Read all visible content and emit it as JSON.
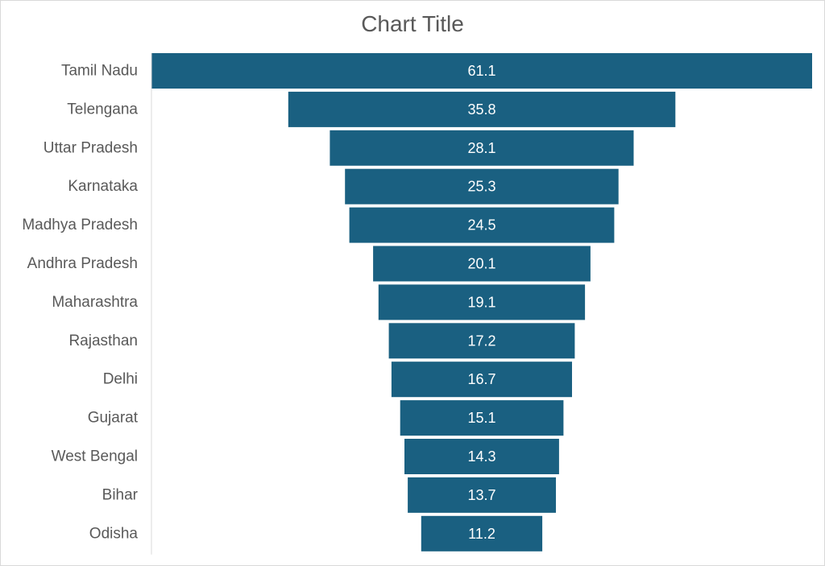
{
  "chart_data": {
    "type": "bar",
    "subtype": "funnel",
    "title": "Chart Title",
    "categories": [
      "Tamil Nadu",
      "Telengana",
      "Uttar Pradesh",
      "Karnataka",
      "Madhya Pradesh",
      "Andhra Pradesh",
      "Maharashtra",
      "Rajasthan",
      "Delhi",
      "Gujarat",
      "West Bengal",
      "Bihar",
      "Odisha"
    ],
    "values": [
      61.1,
      35.8,
      28.1,
      25.3,
      24.5,
      20.1,
      19.1,
      17.2,
      16.7,
      15.1,
      14.3,
      13.7,
      11.2
    ],
    "data_labels": [
      "61.1",
      "35.8",
      "28.1",
      "25.3",
      "24.5",
      "20.1",
      "19.1",
      "17.2",
      "16.7",
      "15.1",
      "14.3",
      "13.7",
      "11.2"
    ],
    "bar_color": "#1a6081",
    "label_color": "#ffffff",
    "axis_color": "#d9d9d9",
    "text_color": "#595959",
    "grid": false,
    "legend": "none"
  }
}
